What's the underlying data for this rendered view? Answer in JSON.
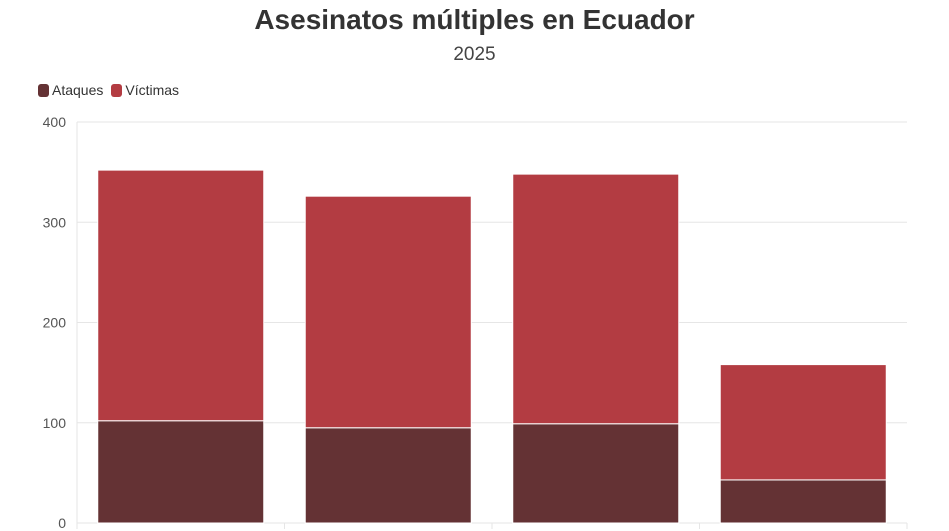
{
  "colors": {
    "ataques": "#643234",
    "victimas": "#b33c42",
    "grid": "#e6e6e6",
    "bar_border": "#ffffff"
  },
  "chart_data": {
    "type": "bar",
    "stacked": true,
    "title": "Asesinatos múltiples en Ecuador",
    "subtitle": "2025",
    "legend_position": "top-left",
    "categories": [
      "",
      "",
      "",
      ""
    ],
    "series": [
      {
        "name": "Ataques",
        "values": [
          102,
          95,
          99,
          43
        ]
      },
      {
        "name": "Víctimas",
        "values": [
          250,
          231,
          249,
          115
        ]
      }
    ],
    "ylim": [
      0,
      400
    ],
    "yticks": [
      0,
      100,
      200,
      300,
      400
    ],
    "grid": true
  }
}
